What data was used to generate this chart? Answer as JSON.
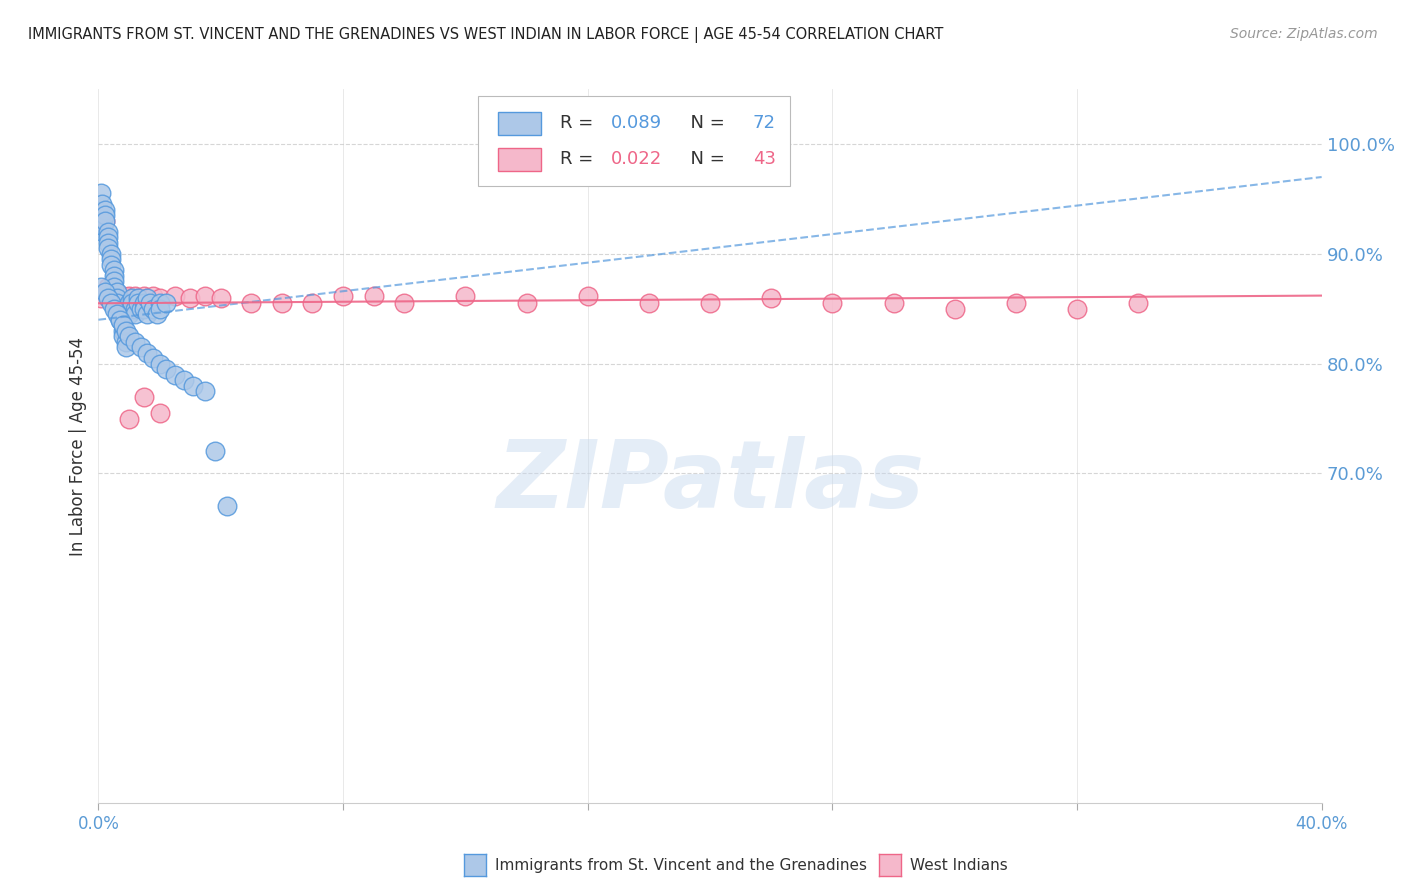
{
  "title": "IMMIGRANTS FROM ST. VINCENT AND THE GRENADINES VS WEST INDIAN IN LABOR FORCE | AGE 45-54 CORRELATION CHART",
  "source": "Source: ZipAtlas.com",
  "ylabel": "In Labor Force | Age 45-54",
  "ytick_labels": [
    "100.0%",
    "90.0%",
    "80.0%",
    "70.0%"
  ],
  "ytick_values": [
    1.0,
    0.9,
    0.8,
    0.7
  ],
  "xlim": [
    0.0,
    0.4
  ],
  "ylim": [
    0.4,
    1.05
  ],
  "blue_R": 0.089,
  "blue_N": 72,
  "pink_R": 0.022,
  "pink_N": 43,
  "legend_label_blue": "Immigrants from St. Vincent and the Grenadines",
  "legend_label_pink": "West Indians",
  "blue_color": "#adc8e8",
  "pink_color": "#f5b8cb",
  "blue_line_color": "#5599dd",
  "pink_line_color": "#ee6688",
  "axis_label_color": "#5b9bd5",
  "title_color": "#222222",
  "watermark": "ZIPatlas",
  "grid_color": "#cccccc",
  "blue_x": [
    0.0008,
    0.001,
    0.0012,
    0.0015,
    0.0015,
    0.002,
    0.002,
    0.002,
    0.003,
    0.003,
    0.003,
    0.003,
    0.004,
    0.004,
    0.004,
    0.005,
    0.005,
    0.005,
    0.005,
    0.006,
    0.006,
    0.006,
    0.007,
    0.007,
    0.007,
    0.008,
    0.008,
    0.008,
    0.009,
    0.009,
    0.01,
    0.01,
    0.01,
    0.011,
    0.011,
    0.012,
    0.012,
    0.013,
    0.013,
    0.014,
    0.015,
    0.015,
    0.016,
    0.016,
    0.017,
    0.018,
    0.019,
    0.02,
    0.02,
    0.022,
    0.001,
    0.002,
    0.003,
    0.004,
    0.005,
    0.006,
    0.007,
    0.008,
    0.009,
    0.01,
    0.012,
    0.014,
    0.016,
    0.018,
    0.02,
    0.022,
    0.025,
    0.028,
    0.031,
    0.035,
    0.038,
    0.042
  ],
  "blue_y": [
    0.955,
    0.93,
    0.945,
    0.92,
    0.925,
    0.94,
    0.935,
    0.93,
    0.92,
    0.915,
    0.91,
    0.905,
    0.9,
    0.895,
    0.89,
    0.885,
    0.88,
    0.875,
    0.87,
    0.865,
    0.86,
    0.855,
    0.85,
    0.845,
    0.84,
    0.835,
    0.83,
    0.825,
    0.82,
    0.815,
    0.855,
    0.85,
    0.845,
    0.86,
    0.855,
    0.85,
    0.845,
    0.86,
    0.855,
    0.85,
    0.855,
    0.85,
    0.845,
    0.86,
    0.855,
    0.85,
    0.845,
    0.855,
    0.85,
    0.855,
    0.87,
    0.865,
    0.86,
    0.855,
    0.85,
    0.845,
    0.84,
    0.835,
    0.83,
    0.825,
    0.82,
    0.815,
    0.81,
    0.805,
    0.8,
    0.795,
    0.79,
    0.785,
    0.78,
    0.775,
    0.72,
    0.67
  ],
  "pink_x": [
    0.001,
    0.002,
    0.003,
    0.004,
    0.005,
    0.006,
    0.007,
    0.008,
    0.009,
    0.01,
    0.012,
    0.013,
    0.015,
    0.016,
    0.018,
    0.02,
    0.025,
    0.03,
    0.035,
    0.04,
    0.05,
    0.06,
    0.07,
    0.08,
    0.09,
    0.1,
    0.12,
    0.14,
    0.16,
    0.18,
    0.2,
    0.22,
    0.24,
    0.26,
    0.28,
    0.3,
    0.32,
    0.34,
    0.005,
    0.008,
    0.01,
    0.015,
    0.02
  ],
  "pink_y": [
    0.86,
    0.93,
    0.87,
    0.86,
    0.86,
    0.862,
    0.86,
    0.862,
    0.86,
    0.862,
    0.862,
    0.86,
    0.862,
    0.86,
    0.862,
    0.86,
    0.862,
    0.86,
    0.862,
    0.86,
    0.855,
    0.855,
    0.855,
    0.862,
    0.862,
    0.855,
    0.862,
    0.855,
    0.862,
    0.855,
    0.855,
    0.86,
    0.855,
    0.855,
    0.85,
    0.855,
    0.85,
    0.855,
    0.86,
    0.855,
    0.75,
    0.77,
    0.755
  ]
}
